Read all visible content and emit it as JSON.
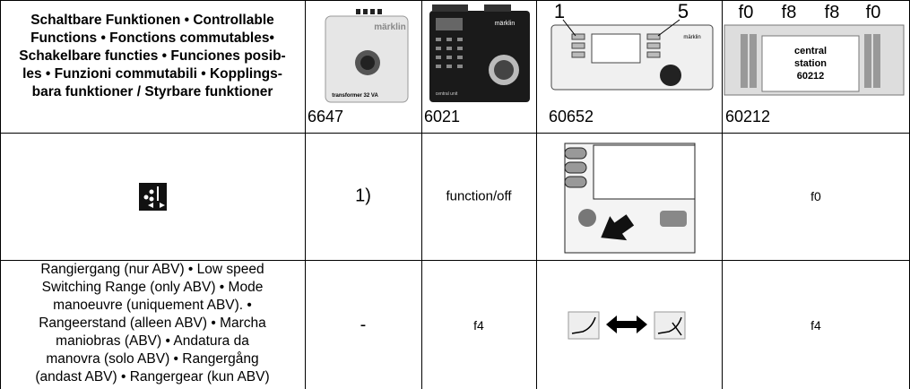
{
  "header": {
    "functions_lines": [
      "Schaltbare Funktionen • Controllable",
      "Functions • Fonctions commutables•",
      "Schakelbare functies • Funciones posib-",
      "les • Funzioni commutabili • Kopplings-",
      "bara funktioner / Styrbare funktioner"
    ],
    "devices": [
      {
        "number": "6647",
        "image_text": [
          "märklin",
          "transformer 32 VA"
        ]
      },
      {
        "number": "6021",
        "image_text": [
          "märklin",
          "central unit"
        ]
      },
      {
        "number": "60652",
        "image_text": [
          "1",
          "5",
          "märklin"
        ]
      },
      {
        "number": "60212",
        "image_text": [
          "f0",
          "f8",
          "f8",
          "f0",
          "central",
          "station",
          "60212"
        ]
      }
    ]
  },
  "rows": [
    {
      "cells": [
        "1)",
        "function/off",
        "f0"
      ]
    },
    {
      "description_lines": [
        "Rangiergang (nur ABV) • Low speed",
        "Switching Range (only ABV) • Mode",
        "manoeuvre (uniquement ABV). •",
        "Rangeerstand (alleen ABV) • Marcha",
        "maniobras (ABV) • Andatura da",
        "manovra (solo ABV) • Rangergång",
        "(andast ABV) • Rangergear (kun ABV)"
      ],
      "cells": [
        "-",
        "f4",
        "f4"
      ]
    }
  ]
}
